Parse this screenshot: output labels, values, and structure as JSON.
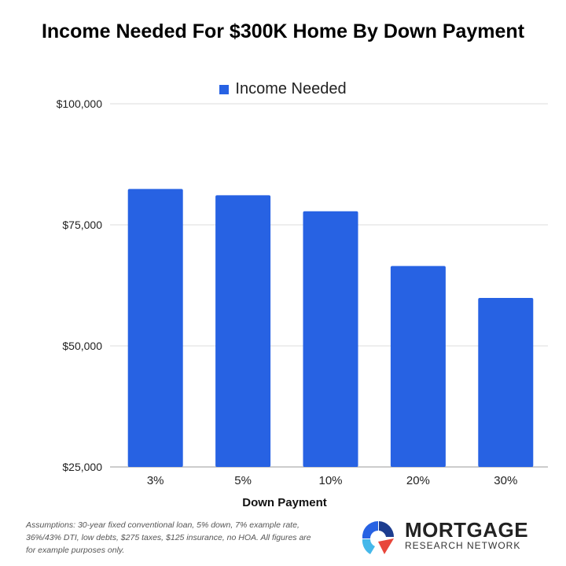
{
  "chart_data": {
    "type": "bar",
    "title": "Income Needed For $300K Home By Down Payment",
    "xlabel": "Down Payment",
    "ylabel": "",
    "categories": [
      "3%",
      "5%",
      "10%",
      "20%",
      "30%"
    ],
    "series": [
      {
        "name": "Income Needed",
        "values": [
          82400,
          81100,
          77800,
          66500,
          59900
        ],
        "color": "#2762e3"
      }
    ],
    "ylim": [
      25000,
      100000
    ],
    "yticks": [
      25000,
      50000,
      75000,
      100000
    ],
    "ytick_labels": [
      "$25,000",
      "$50,000",
      "$75,000",
      "$100,000"
    ],
    "grid": true,
    "legend": "top-center"
  },
  "footer": {
    "note": "Assumptions: 30-year fixed conventional loan, 5% down, 7% example rate, 36%/43% DTI, low debts, $275 taxes, $125 insurance, no HOA. All figures are for example purposes only.",
    "logo_line1": "MORTGAGE",
    "logo_line2": "RESEARCH NETWORK"
  }
}
